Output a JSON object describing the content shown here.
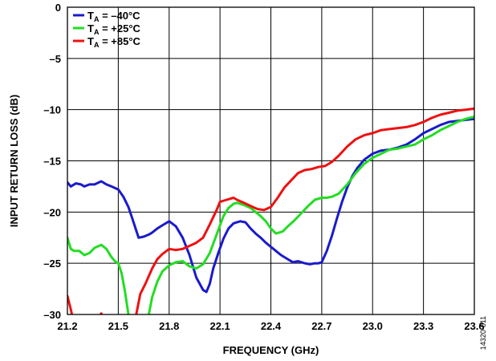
{
  "chart_data": {
    "type": "line",
    "xlabel": "FREQUENCY (GHz)",
    "ylabel": "INPUT RETURN LOSS (dB)",
    "xlim": [
      21.2,
      23.6
    ],
    "ylim": [
      -30,
      0
    ],
    "xticks": [
      21.2,
      21.5,
      21.8,
      22.1,
      22.4,
      22.7,
      23.0,
      23.3,
      23.6
    ],
    "xtick_labels": [
      "21.2",
      "21.5",
      "21.8",
      "22.1",
      "22.4",
      "22.7",
      "23.0",
      "23.3",
      "23.6"
    ],
    "yticks": [
      0,
      -5,
      -10,
      -15,
      -20,
      -25,
      -30
    ],
    "ytick_labels": [
      "0",
      "–5",
      "–10",
      "–15",
      "–20",
      "–25",
      "–30"
    ],
    "grid": true,
    "legend_position": "top-left",
    "figure_id": "14320-011",
    "series": [
      {
        "name": "–40°C",
        "color": "#1a1acc",
        "x": [
          21.2,
          21.22,
          21.25,
          21.28,
          21.3,
          21.33,
          21.36,
          21.4,
          21.43,
          21.46,
          21.5,
          21.53,
          21.56,
          21.58,
          21.6,
          21.62,
          21.65,
          21.68,
          21.7,
          21.73,
          21.76,
          21.8,
          21.84,
          21.88,
          21.92,
          21.96,
          22.0,
          22.02,
          22.04,
          22.06,
          22.09,
          22.12,
          22.15,
          22.18,
          22.2,
          22.22,
          22.25,
          22.28,
          22.31,
          22.34,
          22.37,
          22.4,
          22.43,
          22.46,
          22.5,
          22.53,
          22.56,
          22.6,
          22.63,
          22.66,
          22.68,
          22.7,
          22.73,
          22.76,
          22.79,
          22.82,
          22.85,
          22.88,
          22.91,
          22.95,
          23.0,
          23.05,
          23.1,
          23.15,
          23.2,
          23.25,
          23.3,
          23.35,
          23.4,
          23.45,
          23.5,
          23.55,
          23.6
        ],
        "y": [
          -17.1,
          -17.5,
          -17.2,
          -17.3,
          -17.5,
          -17.3,
          -17.3,
          -17.0,
          -17.3,
          -17.5,
          -17.8,
          -18.5,
          -19.5,
          -20.5,
          -21.5,
          -22.5,
          -22.4,
          -22.2,
          -22.0,
          -21.6,
          -21.3,
          -20.9,
          -21.4,
          -22.5,
          -24.2,
          -26.4,
          -27.6,
          -27.8,
          -27.0,
          -25.5,
          -24.0,
          -22.6,
          -21.6,
          -21.1,
          -21.0,
          -20.9,
          -21.0,
          -21.6,
          -22.1,
          -22.5,
          -23.0,
          -23.4,
          -23.8,
          -24.2,
          -24.6,
          -24.9,
          -24.8,
          -25.0,
          -25.1,
          -25.0,
          -25.0,
          -24.9,
          -23.8,
          -22.3,
          -20.6,
          -19.0,
          -17.6,
          -16.5,
          -15.7,
          -14.9,
          -14.3,
          -14.0,
          -13.9,
          -13.7,
          -13.4,
          -12.9,
          -12.3,
          -11.9,
          -11.5,
          -11.2,
          -11.1,
          -11.0,
          -10.9
        ]
      },
      {
        "name": "+25°C",
        "color": "#22dd22",
        "x": [
          21.2,
          21.22,
          21.24,
          21.27,
          21.3,
          21.33,
          21.36,
          21.4,
          21.43,
          21.46,
          21.48,
          21.5,
          21.52,
          21.54,
          21.56,
          21.58,
          21.62,
          21.66,
          21.68,
          21.7,
          21.73,
          21.76,
          21.8,
          21.84,
          21.88,
          21.92,
          21.96,
          22.0,
          22.04,
          22.08,
          22.12,
          22.15,
          22.18,
          22.2,
          22.24,
          22.28,
          22.31,
          22.34,
          22.37,
          22.4,
          22.43,
          22.47,
          22.5,
          22.54,
          22.58,
          22.62,
          22.66,
          22.7,
          22.73,
          22.76,
          22.8,
          22.85,
          22.9,
          22.95,
          23.0,
          23.05,
          23.1,
          23.15,
          23.2,
          23.25,
          23.3,
          23.35,
          23.4,
          23.45,
          23.5,
          23.55,
          23.6
        ],
        "y": [
          -22.5,
          -23.6,
          -23.8,
          -23.8,
          -24.2,
          -24.0,
          -23.5,
          -23.2,
          -23.6,
          -24.4,
          -24.8,
          -25.0,
          -26.0,
          -27.8,
          -30.0,
          -31.5,
          -34.0,
          -31.5,
          -30.0,
          -28.3,
          -26.8,
          -25.8,
          -25.2,
          -24.9,
          -24.8,
          -25.3,
          -25.5,
          -25.1,
          -24.0,
          -22.2,
          -20.4,
          -19.6,
          -19.2,
          -19.1,
          -19.3,
          -19.6,
          -20.0,
          -20.4,
          -20.9,
          -21.6,
          -22.1,
          -21.9,
          -21.4,
          -20.8,
          -20.1,
          -19.4,
          -18.8,
          -18.6,
          -18.6,
          -18.5,
          -18.2,
          -17.3,
          -16.2,
          -15.3,
          -14.7,
          -14.3,
          -13.9,
          -13.8,
          -13.6,
          -13.4,
          -12.9,
          -12.5,
          -12.0,
          -11.6,
          -11.2,
          -10.9,
          -10.7
        ]
      },
      {
        "name": "+85°C",
        "color": "#ee1111",
        "x": [
          21.2,
          21.22,
          21.24,
          21.38,
          21.4,
          21.42,
          21.6,
          21.63,
          21.66,
          21.7,
          21.73,
          21.76,
          21.8,
          21.84,
          21.88,
          21.92,
          21.96,
          22.0,
          22.04,
          22.08,
          22.1,
          22.14,
          22.18,
          22.2,
          22.24,
          22.28,
          22.32,
          22.36,
          22.4,
          22.44,
          22.48,
          22.52,
          22.56,
          22.6,
          22.64,
          22.68,
          22.72,
          22.76,
          22.8,
          22.85,
          22.9,
          22.95,
          23.0,
          23.05,
          23.1,
          23.15,
          23.2,
          23.25,
          23.3,
          23.35,
          23.4,
          23.45,
          23.5,
          23.55,
          23.6
        ],
        "y": [
          -28.2,
          -29.5,
          -31.0,
          -30.4,
          -29.9,
          -31.0,
          -30.5,
          -28.0,
          -27.0,
          -25.5,
          -24.6,
          -24.1,
          -23.6,
          -23.7,
          -23.6,
          -23.3,
          -23.0,
          -22.5,
          -21.2,
          -19.8,
          -19.0,
          -18.8,
          -18.6,
          -18.8,
          -19.1,
          -19.4,
          -19.7,
          -19.8,
          -19.5,
          -18.6,
          -17.6,
          -16.9,
          -16.2,
          -15.9,
          -15.8,
          -15.6,
          -15.5,
          -15.1,
          -14.5,
          -13.6,
          -12.9,
          -12.5,
          -12.3,
          -12.0,
          -11.9,
          -11.8,
          -11.7,
          -11.5,
          -11.2,
          -10.8,
          -10.5,
          -10.3,
          -10.1,
          -10.0,
          -9.9
        ]
      }
    ]
  }
}
